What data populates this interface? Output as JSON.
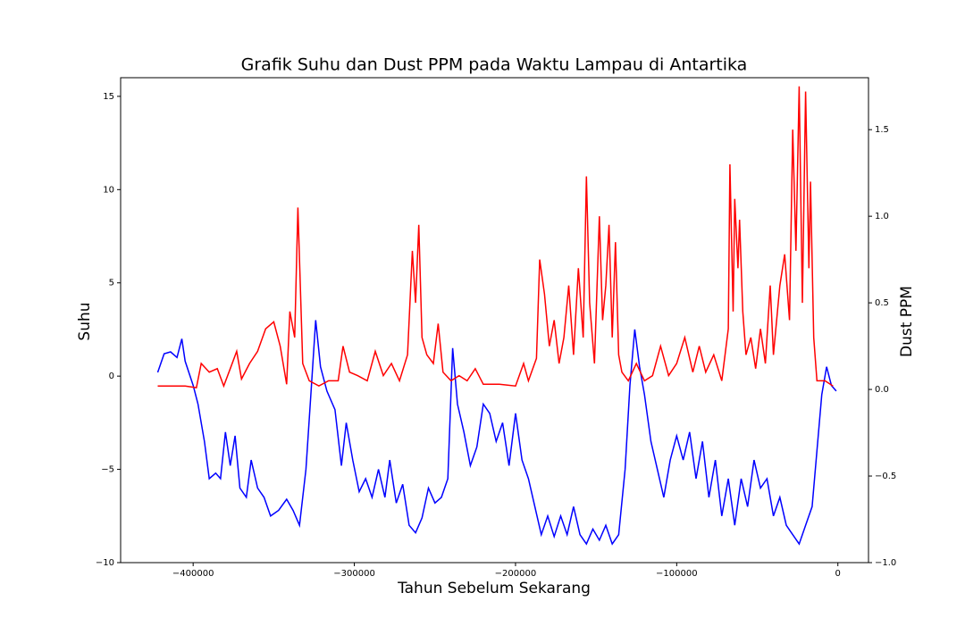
{
  "chart_data": {
    "type": "line",
    "title": "Grafik Suhu dan Dust PPM pada Waktu Lampau di Antartika",
    "xlabel": "Tahun Sebelum Sekarang",
    "ylabel": "Suhu",
    "y2label": "Dust PPM",
    "xlim": [
      -445000,
      19000
    ],
    "ylim": [
      -10,
      16
    ],
    "y2lim": [
      -1,
      1.8
    ],
    "xticks": [
      {
        "value": -400000,
        "label": "−400000"
      },
      {
        "value": -300000,
        "label": "−300000"
      },
      {
        "value": -200000,
        "label": "−200000"
      },
      {
        "value": -100000,
        "label": "−100000"
      },
      0
    ],
    "yticks": [
      {
        "value": -10,
        "label": "−10"
      },
      {
        "value": -5,
        "label": "−5"
      },
      0,
      5,
      10,
      15
    ],
    "y2ticks": [
      {
        "value": -1,
        "label": "−1.0"
      },
      {
        "value": -0.5,
        "label": "−0.5"
      },
      {
        "value": 0,
        "label": "0.0"
      },
      {
        "value": 0.5,
        "label": "0.5"
      },
      {
        "value": 1,
        "label": "1.0"
      },
      {
        "value": 1.5,
        "label": "1.5"
      }
    ],
    "series": [
      {
        "color": "#0000ff",
        "axis": "y",
        "x": [
          -422000,
          -418000,
          -414000,
          -410000,
          -407000,
          -405000,
          -400000,
          -397000,
          -393000,
          -390000,
          -386000,
          -383000,
          -380000,
          -377000,
          -374000,
          -371000,
          -367000,
          -364000,
          -360000,
          -356000,
          -352000,
          -347000,
          -342000,
          -338000,
          -334000,
          -330000,
          -327000,
          -324000,
          -321000,
          -317000,
          -312000,
          -308000,
          -305000,
          -301000,
          -297000,
          -293000,
          -289000,
          -285000,
          -281000,
          -278000,
          -274000,
          -270000,
          -266000,
          -262000,
          -258000,
          -254000,
          -250000,
          -246000,
          -242000,
          -239000,
          -236000,
          -232000,
          -228000,
          -224000,
          -220000,
          -216000,
          -212000,
          -208000,
          -204000,
          -200000,
          -196000,
          -192000,
          -188000,
          -184000,
          -180000,
          -176000,
          -172000,
          -168000,
          -164000,
          -160000,
          -156000,
          -152000,
          -148000,
          -144000,
          -140000,
          -136000,
          -132000,
          -129000,
          -126000,
          -123000,
          -120000,
          -116000,
          -112000,
          -108000,
          -104000,
          -100000,
          -96000,
          -92000,
          -88000,
          -84000,
          -80000,
          -76000,
          -72000,
          -68000,
          -64000,
          -60000,
          -56000,
          -52000,
          -48000,
          -44000,
          -40000,
          -36000,
          -32000,
          -28000,
          -24000,
          -20000,
          -16000,
          -13000,
          -10000,
          -7000,
          -4000,
          -1000
        ],
        "values": [
          0.2,
          1.2,
          1.3,
          1.0,
          2.0,
          0.8,
          -0.5,
          -1.5,
          -3.5,
          -5.5,
          -5.2,
          -5.5,
          -3.0,
          -4.8,
          -3.2,
          -6.0,
          -6.5,
          -4.5,
          -6.0,
          -6.5,
          -7.5,
          -7.2,
          -6.6,
          -7.2,
          -8.0,
          -5.0,
          -1.0,
          3.0,
          0.5,
          -0.8,
          -1.8,
          -4.8,
          -2.5,
          -4.5,
          -6.2,
          -5.5,
          -6.5,
          -5.0,
          -6.5,
          -4.5,
          -6.8,
          -5.8,
          -8.0,
          -8.4,
          -7.6,
          -6.0,
          -6.8,
          -6.5,
          -5.5,
          1.5,
          -1.5,
          -3.0,
          -4.8,
          -3.8,
          -1.5,
          -2.0,
          -3.5,
          -2.5,
          -4.8,
          -2.0,
          -4.5,
          -5.5,
          -7.0,
          -8.5,
          -7.5,
          -8.6,
          -7.5,
          -8.5,
          -7.0,
          -8.5,
          -9.0,
          -8.2,
          -8.8,
          -8.0,
          -9.0,
          -8.5,
          -5.0,
          -0.5,
          2.5,
          0.5,
          -1.0,
          -3.5,
          -5.0,
          -6.5,
          -4.5,
          -3.2,
          -4.5,
          -3.0,
          -5.5,
          -3.5,
          -6.5,
          -4.5,
          -7.5,
          -5.5,
          -8.0,
          -5.5,
          -7.0,
          -4.5,
          -6.0,
          -5.5,
          -7.5,
          -6.5,
          -8.0,
          -8.5,
          -9.0,
          -8.0,
          -7.0,
          -4.0,
          -1.0,
          0.5,
          -0.5,
          -0.8
        ]
      },
      {
        "color": "#ff0000",
        "axis": "y2",
        "x": [
          -422000,
          -405000,
          -398000,
          -395000,
          -390000,
          -385000,
          -381000,
          -377000,
          -373000,
          -370000,
          -365000,
          -360000,
          -355000,
          -350000,
          -346000,
          -342000,
          -340000,
          -337000,
          -335000,
          -332000,
          -328000,
          -322000,
          -316000,
          -310000,
          -307000,
          -303000,
          -298000,
          -292000,
          -287000,
          -282000,
          -277000,
          -272000,
          -267000,
          -264000,
          -262000,
          -260000,
          -258000,
          -255000,
          -251000,
          -248000,
          -245000,
          -240000,
          -235000,
          -230000,
          -225000,
          -220000,
          -210000,
          -200000,
          -195000,
          -192000,
          -187000,
          -185000,
          -182000,
          -179000,
          -176000,
          -173000,
          -170000,
          -167000,
          -164000,
          -161000,
          -158000,
          -156000,
          -154000,
          -151000,
          -148000,
          -146000,
          -144000,
          -142000,
          -140000,
          -138000,
          -136000,
          -134000,
          -130000,
          -125000,
          -120000,
          -115000,
          -110000,
          -105000,
          -100000,
          -95000,
          -90000,
          -86000,
          -82000,
          -77000,
          -72000,
          -68000,
          -67000,
          -65000,
          -64000,
          -62000,
          -61000,
          -59000,
          -57000,
          -54000,
          -51000,
          -48000,
          -45000,
          -42000,
          -40000,
          -36000,
          -33000,
          -30000,
          -28000,
          -26000,
          -24000,
          -22000,
          -20000,
          -18000,
          -17000,
          -15000,
          -13000,
          -8000,
          -3000
        ],
        "values": [
          0.02,
          0.02,
          0.01,
          0.15,
          0.1,
          0.12,
          0.02,
          0.12,
          0.22,
          0.06,
          0.15,
          0.22,
          0.35,
          0.39,
          0.25,
          0.03,
          0.45,
          0.3,
          1.05,
          0.15,
          0.05,
          0.02,
          0.05,
          0.05,
          0.25,
          0.1,
          0.08,
          0.05,
          0.22,
          0.08,
          0.15,
          0.05,
          0.2,
          0.8,
          0.5,
          0.95,
          0.3,
          0.2,
          0.15,
          0.38,
          0.1,
          0.05,
          0.08,
          0.05,
          0.12,
          0.03,
          0.03,
          0.02,
          0.15,
          0.05,
          0.18,
          0.75,
          0.55,
          0.25,
          0.4,
          0.15,
          0.3,
          0.6,
          0.2,
          0.7,
          0.3,
          1.23,
          0.5,
          0.15,
          1.0,
          0.4,
          0.6,
          0.95,
          0.3,
          0.85,
          0.2,
          0.1,
          0.05,
          0.15,
          0.05,
          0.08,
          0.25,
          0.08,
          0.15,
          0.3,
          0.1,
          0.25,
          0.1,
          0.2,
          0.05,
          0.35,
          1.3,
          0.45,
          1.1,
          0.7,
          0.98,
          0.45,
          0.2,
          0.3,
          0.12,
          0.35,
          0.15,
          0.6,
          0.2,
          0.6,
          0.78,
          0.4,
          1.5,
          0.8,
          1.75,
          0.5,
          1.72,
          0.7,
          1.2,
          0.3,
          0.05,
          0.05,
          0.02
        ]
      }
    ]
  }
}
